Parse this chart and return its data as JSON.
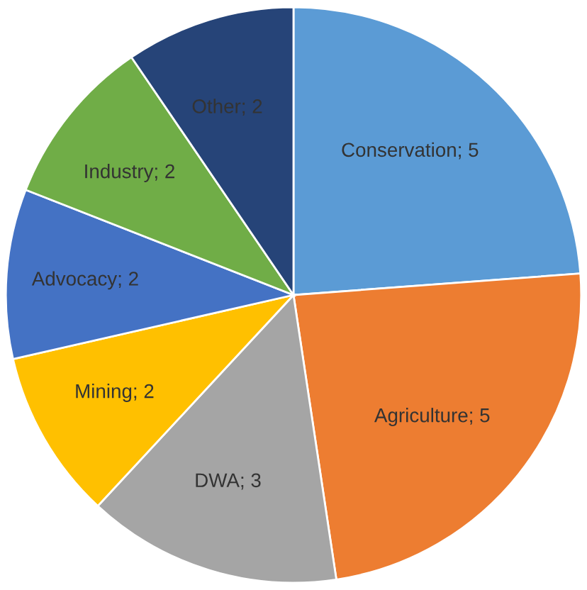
{
  "chart_data": {
    "type": "pie",
    "categories": [
      "Conservation",
      "Agriculture",
      "DWA",
      "Mining",
      "Advocacy",
      "Industry",
      "Other"
    ],
    "values": [
      5,
      5,
      3,
      2,
      2,
      2,
      2
    ],
    "colors": [
      "#5b9bd5",
      "#ed7d31",
      "#a5a5a5",
      "#ffc000",
      "#4472c4",
      "#70ad47",
      "#264478"
    ],
    "value_labels": [
      "; 5",
      "; 5",
      "; 3",
      "; 2",
      "; 2",
      "; 2",
      "; 2"
    ],
    "legend": false
  }
}
